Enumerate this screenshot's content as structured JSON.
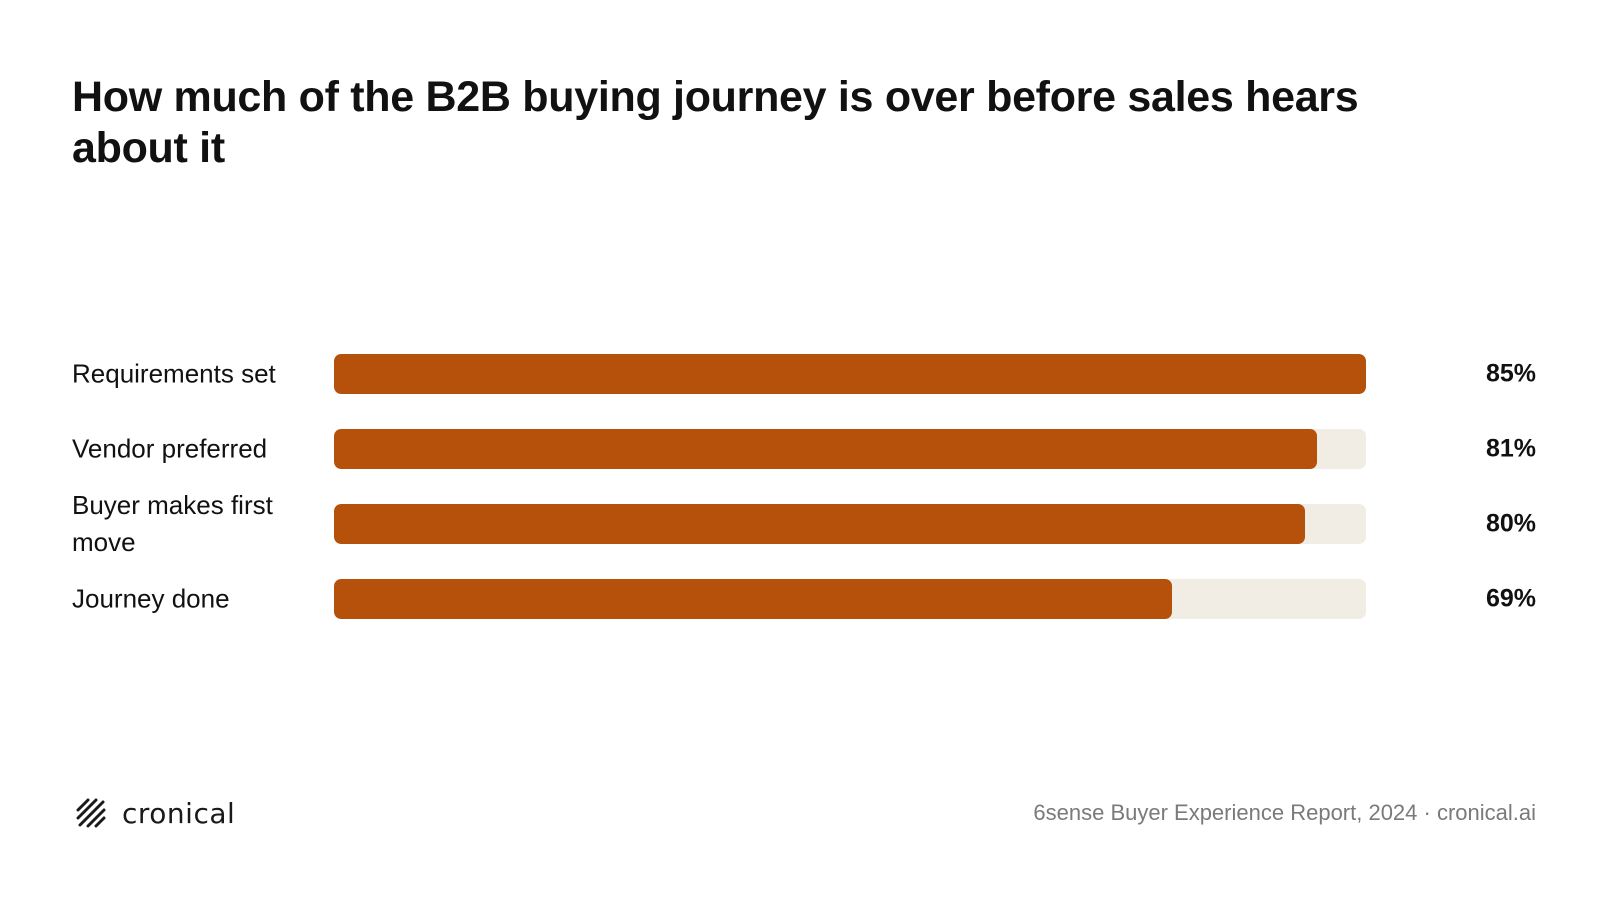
{
  "colors": {
    "accent": "#b5510b",
    "track": "#f1ede4",
    "text": "#111111",
    "muted": "#7a7a7a",
    "background": "#ffffff"
  },
  "chart_data": {
    "type": "bar",
    "orientation": "horizontal",
    "title": "How much of the B2B buying journey is over before sales hears about it",
    "categories": [
      "Requirements set",
      "Vendor preferred",
      "Buyer makes first move",
      "Journey done"
    ],
    "values": [
      85,
      81,
      80,
      69
    ],
    "value_labels": [
      "85%",
      "81%",
      "80%",
      "69%"
    ],
    "xlim": [
      0,
      85
    ],
    "grid": false,
    "legend": "none"
  },
  "footer": {
    "logo_text": "cronical",
    "logo_icon": "cronical-logo-icon",
    "source": "6sense Buyer Experience Report, 2024 · cronical.ai"
  }
}
